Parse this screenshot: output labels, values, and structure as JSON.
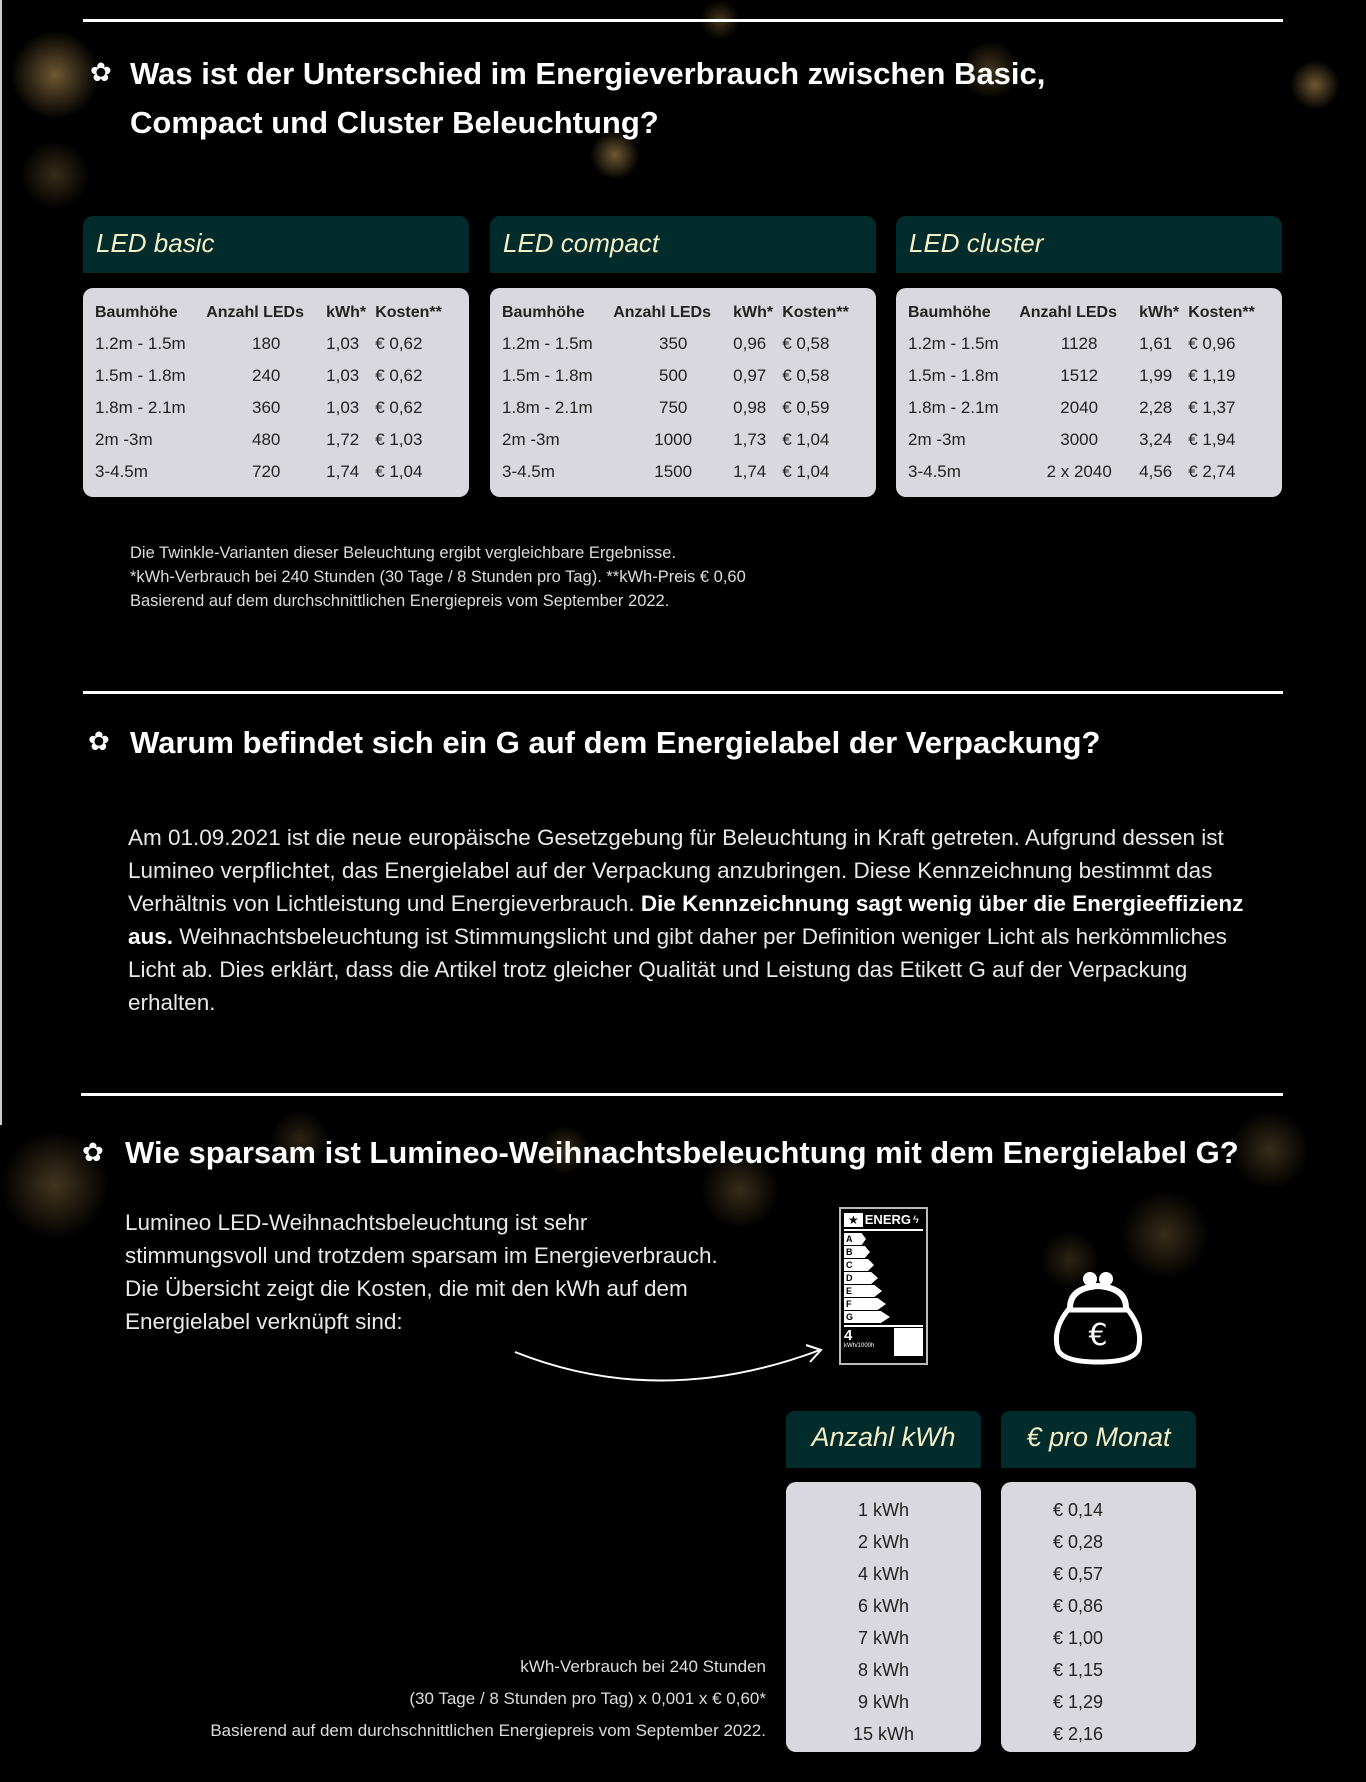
{
  "q1": {
    "title_line1": "Was ist der Unterschied im Energieverbrauch zwischen Basic,",
    "title_line2": "Compact und Cluster Beleuchtung?",
    "columns": [
      "Baumhöhe",
      "Anzahl LEDs",
      "kWh*",
      "Kosten**"
    ],
    "tables": [
      {
        "title": "LED basic",
        "rows": [
          [
            "1.2m - 1.5m",
            "180",
            "1,03",
            "€ 0,62"
          ],
          [
            "1.5m - 1.8m",
            "240",
            "1,03",
            "€ 0,62"
          ],
          [
            "1.8m - 2.1m",
            "360",
            "1,03",
            "€ 0,62"
          ],
          [
            "2m -3m",
            "480",
            "1,72",
            "€ 1,03"
          ],
          [
            "3-4.5m",
            "720",
            "1,74",
            "€ 1,04"
          ]
        ]
      },
      {
        "title": "LED compact",
        "rows": [
          [
            "1.2m - 1.5m",
            "350",
            "0,96",
            "€ 0,58"
          ],
          [
            "1.5m - 1.8m",
            "500",
            "0,97",
            "€ 0,58"
          ],
          [
            "1.8m - 2.1m",
            "750",
            "0,98",
            "€ 0,59"
          ],
          [
            "2m -3m",
            "1000",
            "1,73",
            "€ 1,04"
          ],
          [
            "3-4.5m",
            "1500",
            "1,74",
            "€ 1,04"
          ]
        ]
      },
      {
        "title": "LED cluster",
        "rows": [
          [
            "1.2m - 1.5m",
            "1128",
            "1,61",
            "€ 0,96"
          ],
          [
            "1.5m - 1.8m",
            "1512",
            "1,99",
            "€ 1,19"
          ],
          [
            "1.8m - 2.1m",
            "2040",
            "2,28",
            "€ 1,37"
          ],
          [
            "2m -3m",
            "3000",
            "3,24",
            "€ 1,94"
          ],
          [
            "3-4.5m",
            "2 x 2040",
            "4,56",
            "€ 2,74"
          ]
        ]
      }
    ],
    "notes": [
      "Die Twinkle-Varianten dieser Beleuchtung ergibt vergleichbare Ergebnisse.",
      "*kWh-Verbrauch bei 240 Stunden (30 Tage / 8 Stunden pro Tag). **kWh-Preis € 0,60",
      "Basierend auf dem durchschnittlichen Energiepreis vom September 2022."
    ]
  },
  "q2": {
    "title": "Warum befindet sich ein G auf dem Energielabel der Verpackung?",
    "text_a": "Am 01.09.2021 ist die neue europäische Gesetzgebung für Beleuchtung in Kraft getreten. Aufgrund dessen ist Lumineo verpflichtet, das Energielabel auf der Verpackung anzubringen. Diese Kennzeichnung bestimmt das Verhältnis von Lichtleistung und Energieverbrauch. ",
    "text_bold": "Die Kennzeichnung sagt wenig über die Energieeffizienz aus.",
    "text_b": " Weihnachtsbeleuchtung ist Stimmungslicht und gibt daher per Definition weniger Licht als herkömmliches Licht ab. Dies erklärt, dass die Artikel trotz gleicher Qualität und Leistung das Etikett G auf der Verpackung erhalten."
  },
  "q3": {
    "title": "Wie sparsam ist Lumineo-Weihnachtsbeleuchtung mit dem Energielabel G?",
    "text": "Lumineo LED-Weihnachtsbeleuchtung ist sehr stimmungsvoll und trotzdem sparsam im Energieverbrauch. Die Übersicht zeigt die Kosten, die mit den kWh auf dem Energielabel verknüpft sind:",
    "label": {
      "brand": "ENERG",
      "classes": [
        "A",
        "B",
        "C",
        "D",
        "E",
        "F",
        "G"
      ],
      "value": "4",
      "unit": "kWh/1000h"
    },
    "kwh_title": "Anzahl kWh",
    "euro_title": "€ pro Monat",
    "kwh": [
      "1 kWh",
      "2 kWh",
      "4 kWh",
      "6 kWh",
      "7 kWh",
      "8 kWh",
      "9 kWh",
      "15 kWh"
    ],
    "euro": [
      "€ 0,14",
      "€ 0,28",
      "€ 0,57",
      "€ 0,86",
      "€ 1,00",
      "€ 1,15",
      "€ 1,29",
      "€ 2,16"
    ],
    "notes": [
      "kWh-Verbrauch bei 240 Stunden",
      "(30 Tage / 8 Stunden pro Tag) x 0,001 x € 0,60*",
      "Basierend auf dem durchschnittlichen Energiepreis vom September 2022."
    ]
  },
  "colors": {
    "header_bg": "#022b2c",
    "header_text": "#f3efc6",
    "table_bg": "#d9d8de"
  }
}
